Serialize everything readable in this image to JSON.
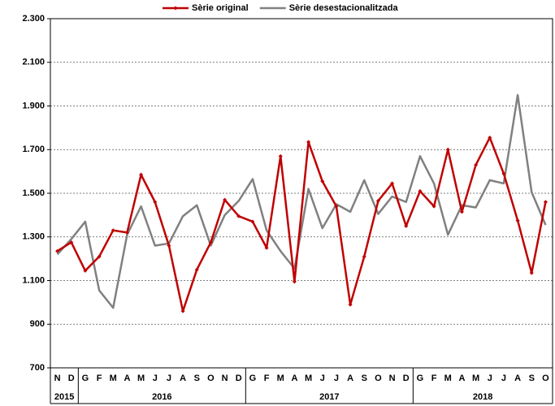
{
  "chart_data": {
    "type": "line",
    "categories": [
      "N",
      "D",
      "G",
      "F",
      "M",
      "A",
      "M",
      "J",
      "J",
      "A",
      "S",
      "O",
      "N",
      "D",
      "G",
      "F",
      "M",
      "A",
      "M",
      "J",
      "J",
      "A",
      "S",
      "O",
      "N",
      "D",
      "G",
      "F",
      "M",
      "A",
      "M",
      "J",
      "J",
      "A",
      "S",
      "O"
    ],
    "category_years": [
      "2015",
      "2015",
      "2016",
      "2016",
      "2016",
      "2016",
      "2016",
      "2016",
      "2016",
      "2016",
      "2016",
      "2016",
      "2016",
      "2016",
      "2017",
      "2017",
      "2017",
      "2017",
      "2017",
      "2017",
      "2017",
      "2017",
      "2017",
      "2017",
      "2017",
      "2017",
      "2018",
      "2018",
      "2018",
      "2018",
      "2018",
      "2018",
      "2018",
      "2018",
      "2018",
      "2018"
    ],
    "series": [
      {
        "name": "Sèrie original",
        "color": "#c00000",
        "values": [
          1235,
          1275,
          1145,
          1210,
          1330,
          1320,
          1585,
          1460,
          1260,
          960,
          1150,
          1275,
          1470,
          1395,
          1370,
          1250,
          1670,
          1095,
          1735,
          1555,
          1440,
          990,
          1210,
          1465,
          1545,
          1350,
          1510,
          1440,
          1700,
          1415,
          1630,
          1755,
          1590,
          1375,
          1135,
          1460
        ]
      },
      {
        "name": "Sèrie desestacionalitzada",
        "color": "#808080",
        "values": [
          1220,
          1290,
          1370,
          1055,
          975,
          1310,
          1440,
          1260,
          1270,
          1395,
          1445,
          1260,
          1400,
          1465,
          1565,
          1330,
          1235,
          1155,
          1520,
          1340,
          1450,
          1415,
          1560,
          1405,
          1485,
          1460,
          1670,
          1545,
          1310,
          1445,
          1435,
          1560,
          1545,
          1950,
          1505,
          1355
        ]
      }
    ],
    "ylim": [
      700,
      2300
    ],
    "yticks": [
      700,
      900,
      {
        "value": 1100,
        "label": "1.100"
      },
      {
        "value": 1300,
        "label": "1.300"
      },
      {
        "value": 1500,
        "label": "1.500"
      },
      {
        "value": 1700,
        "label": "1.700"
      },
      {
        "value": 1900,
        "label": "1.900"
      },
      {
        "value": 2100,
        "label": "2.100"
      },
      {
        "value": 2300,
        "label": "2.300"
      }
    ],
    "grid": true,
    "legend": "top"
  }
}
